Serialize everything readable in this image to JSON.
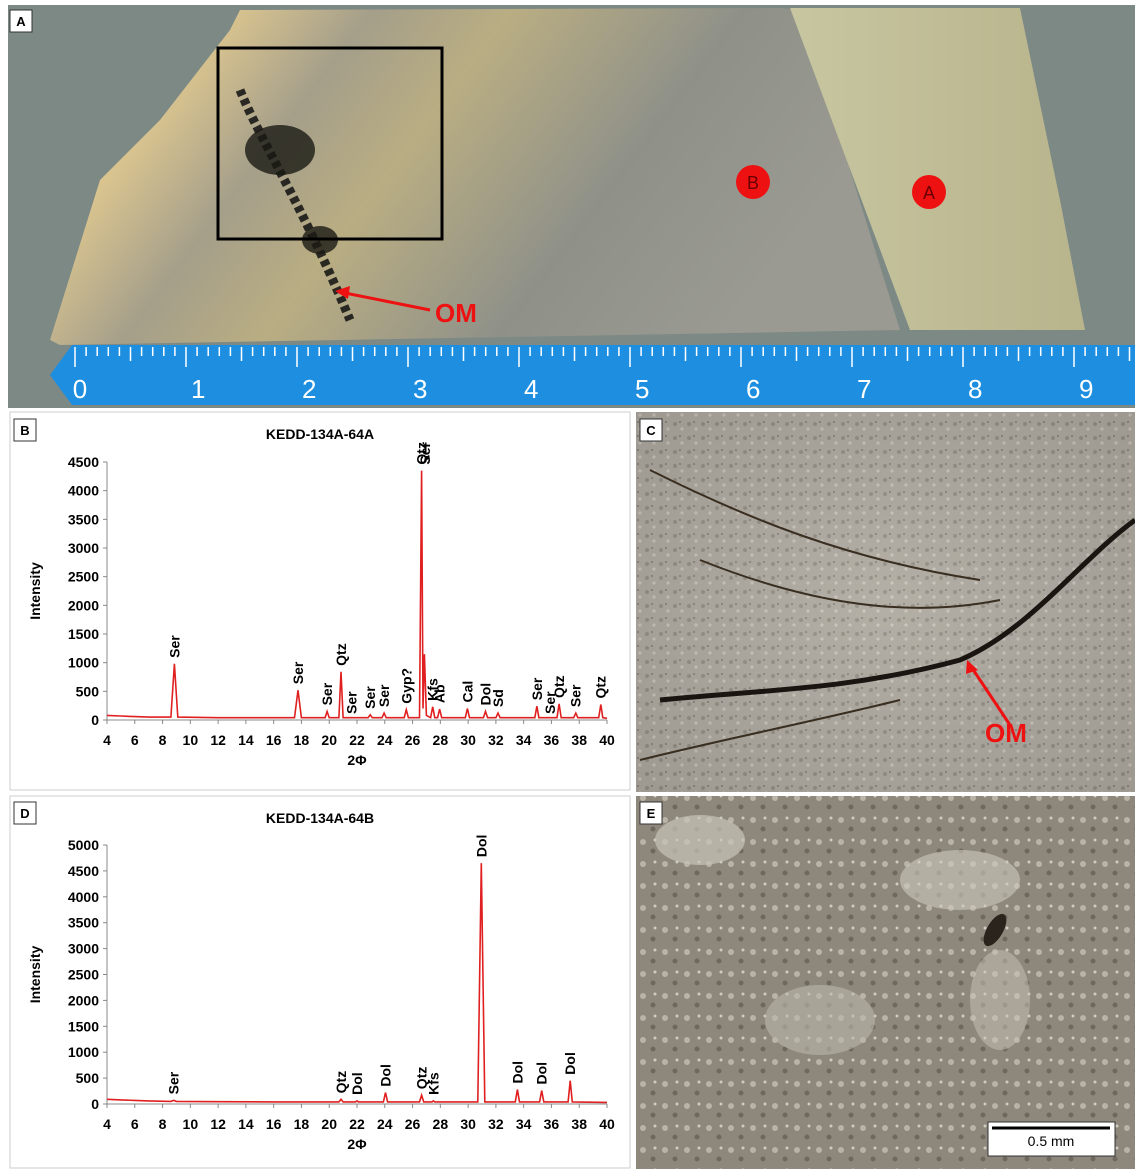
{
  "panels": [
    "A",
    "B",
    "C",
    "D",
    "E"
  ],
  "panel_a": {
    "ruler_labels": [
      "0",
      "1",
      "2",
      "3",
      "4",
      "5",
      "6",
      "7",
      "8",
      "9"
    ],
    "markers": [
      "B",
      "A"
    ],
    "annotation": "OM"
  },
  "panel_c": {
    "annotation": "OM"
  },
  "panel_e": {
    "scale_bar": "0.5 mm"
  },
  "chart_data": [
    {
      "type": "line",
      "title": "KEDD-134A-64A",
      "xlabel": "2Φ",
      "ylabel": "Intensity",
      "color": "#e02020",
      "xlim": [
        4,
        40
      ],
      "xticks": [
        4,
        6,
        8,
        10,
        12,
        14,
        16,
        18,
        20,
        22,
        24,
        26,
        28,
        30,
        32,
        34,
        36,
        38,
        40
      ],
      "ylim": [
        0,
        4500
      ],
      "yticks": [
        0,
        500,
        1000,
        1500,
        2000,
        2500,
        3000,
        3500,
        4000,
        4500
      ],
      "x": [
        4,
        5,
        6,
        7,
        8.6,
        8.85,
        9.1,
        12,
        17.5,
        17.75,
        18,
        19.7,
        19.85,
        20,
        20.7,
        20.85,
        21,
        22.8,
        22.95,
        23.1,
        23.8,
        23.95,
        24.1,
        25.4,
        25.55,
        25.7,
        26.5,
        26.65,
        26.75,
        26.85,
        27,
        27.3,
        27.45,
        27.6,
        27.8,
        27.95,
        28.1,
        29.8,
        29.95,
        30.1,
        31.1,
        31.25,
        31.4,
        32,
        32.15,
        32.3,
        34.8,
        34.95,
        35.1,
        36.4,
        36.55,
        36.7,
        37.6,
        37.75,
        37.9,
        39.4,
        39.55,
        39.7,
        40
      ],
      "values": [
        80,
        70,
        60,
        50,
        50,
        980,
        50,
        40,
        40,
        520,
        40,
        40,
        150,
        40,
        40,
        840,
        40,
        40,
        90,
        40,
        40,
        120,
        40,
        40,
        180,
        40,
        40,
        4350,
        200,
        1150,
        80,
        40,
        230,
        40,
        40,
        190,
        40,
        40,
        200,
        40,
        40,
        150,
        40,
        40,
        120,
        40,
        40,
        240,
        40,
        40,
        280,
        40,
        40,
        120,
        40,
        40,
        270,
        40,
        30
      ],
      "annotations": [
        {
          "text": "Ser",
          "x": 8.85
        },
        {
          "text": "Ser",
          "x": 17.75
        },
        {
          "text": "Ser",
          "x": 19.85
        },
        {
          "text": "Qtz",
          "x": 20.85
        },
        {
          "text": "Ser",
          "x": 21.6
        },
        {
          "text": "Ser",
          "x": 22.95
        },
        {
          "text": "Ser",
          "x": 23.95
        },
        {
          "text": "Gyp?",
          "x": 25.55
        },
        {
          "text": "Qtz",
          "x": 26.65
        },
        {
          "text": "Ser",
          "x": 26.9
        },
        {
          "text": "Kfs",
          "x": 27.45
        },
        {
          "text": "Ab",
          "x": 27.95
        },
        {
          "text": "Cal",
          "x": 29.95
        },
        {
          "text": "Dol",
          "x": 31.25
        },
        {
          "text": "Sd",
          "x": 32.15
        },
        {
          "text": "Ser",
          "x": 34.95
        },
        {
          "text": "Ser",
          "x": 35.9
        },
        {
          "text": "Qtz",
          "x": 36.55
        },
        {
          "text": "Ser",
          "x": 37.75
        },
        {
          "text": "Qtz",
          "x": 39.55
        }
      ]
    },
    {
      "type": "line",
      "title": "KEDD-134A-64B",
      "xlabel": "2Φ",
      "ylabel": "Intensity",
      "color": "#e02020",
      "xlim": [
        4,
        40
      ],
      "xticks": [
        4,
        6,
        8,
        10,
        12,
        14,
        16,
        18,
        20,
        22,
        24,
        26,
        28,
        30,
        32,
        34,
        36,
        38,
        40
      ],
      "ylim": [
        0,
        5000
      ],
      "yticks": [
        0,
        500,
        1000,
        1500,
        2000,
        2500,
        3000,
        3500,
        4000,
        4500,
        5000
      ],
      "x": [
        4,
        5,
        6,
        7,
        8.6,
        8.8,
        9,
        12,
        16,
        20.7,
        20.85,
        21,
        21.9,
        22,
        22.1,
        23.9,
        24.05,
        24.2,
        26.5,
        26.65,
        26.8,
        27.4,
        27.5,
        27.6,
        30.7,
        30.95,
        31.2,
        33.4,
        33.55,
        33.7,
        35.15,
        35.3,
        35.45,
        37.2,
        37.35,
        37.5,
        40
      ],
      "values": [
        90,
        80,
        70,
        60,
        50,
        70,
        50,
        45,
        40,
        40,
        90,
        40,
        40,
        60,
        40,
        40,
        220,
        40,
        40,
        170,
        40,
        40,
        60,
        40,
        40,
        4650,
        40,
        40,
        280,
        40,
        40,
        260,
        40,
        40,
        450,
        40,
        30
      ],
      "annotations": [
        {
          "text": "Ser",
          "x": 8.8
        },
        {
          "text": "Qtz",
          "x": 20.85
        },
        {
          "text": "Dol",
          "x": 22
        },
        {
          "text": "Dol",
          "x": 24.05
        },
        {
          "text": "Qtz",
          "x": 26.65
        },
        {
          "text": "Kfs",
          "x": 27.5
        },
        {
          "text": "Dol",
          "x": 30.95
        },
        {
          "text": "Dol",
          "x": 33.55
        },
        {
          "text": "Dol",
          "x": 35.3
        },
        {
          "text": "Dol",
          "x": 37.35
        }
      ]
    }
  ]
}
